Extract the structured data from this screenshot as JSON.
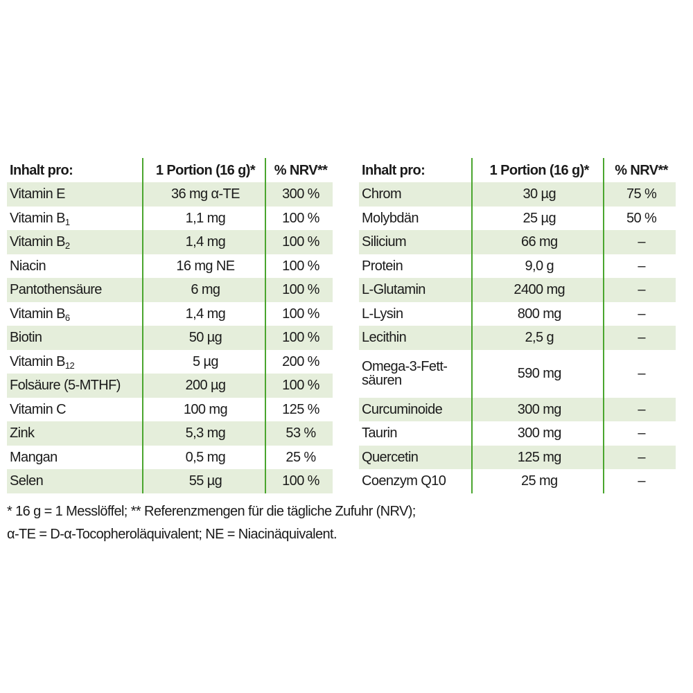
{
  "left_table": {
    "headers": [
      "Inhalt pro:",
      "1 Portion (16 g)*",
      "% NRV**"
    ],
    "rows": [
      {
        "name": "Vitamin E",
        "sub": "",
        "amount": "36 mg α-TE",
        "nrv": "300 %"
      },
      {
        "name": "Vitamin B",
        "sub": "1",
        "amount": "1,1 mg",
        "nrv": "100 %"
      },
      {
        "name": "Vitamin B",
        "sub": "2",
        "amount": "1,4 mg",
        "nrv": "100 %"
      },
      {
        "name": "Niacin",
        "sub": "",
        "amount": "16 mg NE",
        "nrv": "100 %"
      },
      {
        "name": "Pantothensäure",
        "sub": "",
        "amount": "6 mg",
        "nrv": "100 %"
      },
      {
        "name": "Vitamin B",
        "sub": "6",
        "amount": "1,4 mg",
        "nrv": "100 %"
      },
      {
        "name": "Biotin",
        "sub": "",
        "amount": "50 µg",
        "nrv": "100 %"
      },
      {
        "name": "Vitamin B",
        "sub": "12",
        "amount": "5 µg",
        "nrv": "200 %"
      },
      {
        "name": "Folsäure (5-MTHF)",
        "sub": "",
        "amount": "200 µg",
        "nrv": "100 %"
      },
      {
        "name": "Vitamin C",
        "sub": "",
        "amount": "100 mg",
        "nrv": "125 %"
      },
      {
        "name": "Zink",
        "sub": "",
        "amount": "5,3 mg",
        "nrv": "53 %"
      },
      {
        "name": "Mangan",
        "sub": "",
        "amount": "0,5 mg",
        "nrv": "25 %"
      },
      {
        "name": "Selen",
        "sub": "",
        "amount": "55 µg",
        "nrv": "100 %"
      }
    ]
  },
  "right_table": {
    "headers": [
      "Inhalt pro:",
      "1 Portion (16 g)*",
      "% NRV**"
    ],
    "rows": [
      {
        "name": "Chrom",
        "amount": "30 µg",
        "nrv": "75 %"
      },
      {
        "name": "Molybdän",
        "amount": "25 µg",
        "nrv": "50 %"
      },
      {
        "name": "Silicium",
        "amount": "66 mg",
        "nrv": "–"
      },
      {
        "name": "Protein",
        "amount": "9,0 g",
        "nrv": "–"
      },
      {
        "name": "L-Glutamin",
        "amount": "2400 mg",
        "nrv": "–"
      },
      {
        "name": "L-Lysin",
        "amount": "800 mg",
        "nrv": "–"
      },
      {
        "name": "Lecithin",
        "amount": "2,5 g",
        "nrv": "–"
      },
      {
        "name": "Omega-3-Fett-",
        "name2": "säuren",
        "amount": "590 mg",
        "nrv": "–"
      },
      {
        "name": "Curcuminoide",
        "amount": "300 mg",
        "nrv": "–"
      },
      {
        "name": "Taurin",
        "amount": "300 mg",
        "nrv": "–"
      },
      {
        "name": "Quercetin",
        "amount": "125 mg",
        "nrv": "–"
      },
      {
        "name": "Coenzym Q10",
        "amount": "25 mg",
        "nrv": "–"
      }
    ]
  },
  "footnote": {
    "line1": "* 16 g = 1 Messlöffel; ** Referenzmengen für die tägliche Zufuhr (NRV);",
    "line2": "α-TE = D-α-Tocopheroläquivalent; NE = Niacinäquivalent."
  },
  "colors": {
    "accent_line": "#4aa52e",
    "row_shade": "#e5eedb"
  }
}
